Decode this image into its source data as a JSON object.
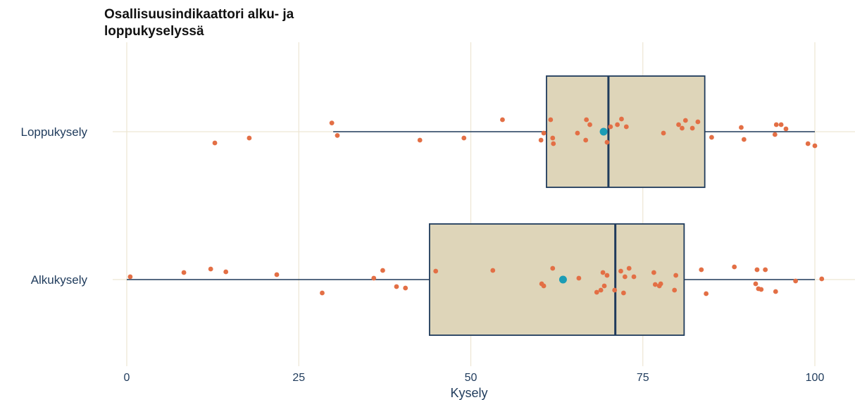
{
  "chart_data": {
    "type": "boxplot",
    "title_line1": "Osallisuusindikaattori alku- ja",
    "title_line2": "loppukyselyssä",
    "xlabel": "Kysely",
    "ylabel": "",
    "xlim": [
      0,
      100
    ],
    "xticks": [
      0,
      25,
      50,
      75,
      100
    ],
    "grid": true,
    "colors": {
      "box_fill": "#ded5b9",
      "box_stroke": "#1f3b5c",
      "point": "#e36f45",
      "mean": "#1b9cb5",
      "grid": "#ede6d3"
    },
    "series": [
      {
        "label": "Loppukysely",
        "whisker_low": 30,
        "q1": 61,
        "median": 70,
        "q3": 84,
        "whisker_high": 100,
        "mean": 69.3,
        "points": [
          [
            12.8,
            0.8
          ],
          [
            17.8,
            0.45
          ],
          [
            29.8,
            -0.62
          ],
          [
            30.6,
            0.27
          ],
          [
            42.6,
            0.6
          ],
          [
            49.0,
            0.45
          ],
          [
            54.6,
            -0.85
          ],
          [
            60.2,
            0.6
          ],
          [
            60.6,
            0.1
          ],
          [
            61.6,
            -0.85
          ],
          [
            62.0,
            0.85
          ],
          [
            61.9,
            0.45
          ],
          [
            65.5,
            0.1
          ],
          [
            66.7,
            0.6
          ],
          [
            66.8,
            -0.85
          ],
          [
            67.3,
            -0.5
          ],
          [
            69.8,
            0.75
          ],
          [
            70.3,
            -0.35
          ],
          [
            71.3,
            -0.5
          ],
          [
            71.9,
            -0.9
          ],
          [
            72.6,
            -0.35
          ],
          [
            78.0,
            0.1
          ],
          [
            80.2,
            -0.5
          ],
          [
            80.7,
            -0.25
          ],
          [
            81.2,
            -0.8
          ],
          [
            82.2,
            -0.25
          ],
          [
            83.0,
            -0.7
          ],
          [
            85.0,
            0.4
          ],
          [
            89.3,
            -0.3
          ],
          [
            89.7,
            0.55
          ],
          [
            94.2,
            0.2
          ],
          [
            94.4,
            -0.5
          ],
          [
            95.1,
            -0.5
          ],
          [
            95.8,
            -0.2
          ],
          [
            99.0,
            0.85
          ],
          [
            100.0,
            1.0
          ]
        ]
      },
      {
        "label": "Alkukysely",
        "whisker_low": 0,
        "q1": 44,
        "median": 71,
        "q3": 81,
        "whisker_high": 100,
        "mean": 63.4,
        "points": [
          [
            0.5,
            -0.2
          ],
          [
            8.3,
            -0.5
          ],
          [
            12.2,
            -0.75
          ],
          [
            14.4,
            -0.55
          ],
          [
            21.8,
            -0.35
          ],
          [
            28.4,
            0.95
          ],
          [
            35.9,
            -0.1
          ],
          [
            37.2,
            -0.65
          ],
          [
            39.2,
            0.5
          ],
          [
            40.5,
            0.6
          ],
          [
            44.9,
            -0.6
          ],
          [
            53.2,
            -0.65
          ],
          [
            60.3,
            0.3
          ],
          [
            60.6,
            0.45
          ],
          [
            61.9,
            -0.8
          ],
          [
            65.7,
            -0.1
          ],
          [
            68.3,
            0.9
          ],
          [
            68.9,
            0.75
          ],
          [
            69.2,
            -0.5
          ],
          [
            69.4,
            0.45
          ],
          [
            69.8,
            -0.3
          ],
          [
            70.9,
            0.75
          ],
          [
            71.8,
            -0.6
          ],
          [
            72.2,
            0.95
          ],
          [
            72.4,
            -0.2
          ],
          [
            73.0,
            -0.8
          ],
          [
            73.7,
            -0.2
          ],
          [
            76.6,
            -0.5
          ],
          [
            76.8,
            0.35
          ],
          [
            77.4,
            0.45
          ],
          [
            77.6,
            0.3
          ],
          [
            79.6,
            0.75
          ],
          [
            79.8,
            -0.3
          ],
          [
            83.5,
            -0.7
          ],
          [
            84.2,
            1.0
          ],
          [
            88.3,
            -0.9
          ],
          [
            91.4,
            0.3
          ],
          [
            91.6,
            -0.7
          ],
          [
            91.8,
            0.65
          ],
          [
            92.2,
            0.7
          ],
          [
            92.8,
            -0.7
          ],
          [
            94.3,
            0.85
          ],
          [
            97.2,
            0.1
          ],
          [
            101.0,
            -0.05
          ]
        ]
      }
    ]
  }
}
